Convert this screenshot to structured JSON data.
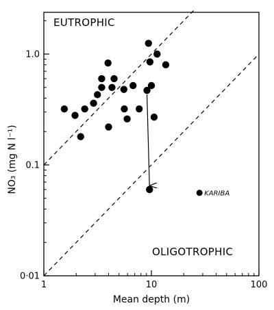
{
  "chart_data": {
    "type": "scatter",
    "xscale": "log",
    "yscale": "log",
    "xlim": [
      1,
      100
    ],
    "ylim": [
      0.01,
      2.5
    ],
    "xlabel": "Mean depth (m)",
    "ylabel": "NO₃ (mg N l⁻¹)",
    "x_ticks": [
      {
        "value": 1,
        "label": "1"
      },
      {
        "value": 10,
        "label": "10"
      },
      {
        "value": 100,
        "label": "100"
      }
    ],
    "y_ticks": [
      {
        "value": 0.01,
        "label": "0·01"
      },
      {
        "value": 0.1,
        "label": "0.1"
      },
      {
        "value": 1.0,
        "label": "1.0"
      }
    ],
    "region_labels": {
      "upper": "EUTROPHIC",
      "lower": "OLIGOTROPHIC"
    },
    "boundary_lines": [
      {
        "style": "dashed",
        "points": [
          [
            1,
            0.1
          ],
          [
            25,
            2.5
          ]
        ]
      },
      {
        "style": "dashed",
        "points": [
          [
            1,
            0.01
          ],
          [
            100,
            1.0
          ]
        ]
      }
    ],
    "points": [
      {
        "x": 1.55,
        "y": 0.32
      },
      {
        "x": 1.95,
        "y": 0.28
      },
      {
        "x": 2.2,
        "y": 0.18
      },
      {
        "x": 2.4,
        "y": 0.32
      },
      {
        "x": 2.9,
        "y": 0.36
      },
      {
        "x": 3.15,
        "y": 0.43
      },
      {
        "x": 3.45,
        "y": 0.5
      },
      {
        "x": 3.45,
        "y": 0.6
      },
      {
        "x": 3.95,
        "y": 0.83
      },
      {
        "x": 4.0,
        "y": 0.22
      },
      {
        "x": 4.3,
        "y": 0.5
      },
      {
        "x": 4.5,
        "y": 0.6
      },
      {
        "x": 5.55,
        "y": 0.48
      },
      {
        "x": 5.6,
        "y": 0.32
      },
      {
        "x": 5.95,
        "y": 0.26
      },
      {
        "x": 6.75,
        "y": 0.52
      },
      {
        "x": 7.7,
        "y": 0.32
      },
      {
        "x": 9.1,
        "y": 0.47
      },
      {
        "x": 9.4,
        "y": 1.25
      },
      {
        "x": 9.7,
        "y": 0.85
      },
      {
        "x": 10.0,
        "y": 0.52
      },
      {
        "x": 10.6,
        "y": 0.27
      },
      {
        "x": 11.3,
        "y": 1.0
      },
      {
        "x": 13.6,
        "y": 0.8
      },
      {
        "x": 9.6,
        "y": 0.06
      },
      {
        "x": 28.0,
        "y": 0.056,
        "label": "KARIBA"
      }
    ],
    "arrow": {
      "from": [
        9.1,
        0.47
      ],
      "to": [
        9.6,
        0.065
      ]
    }
  }
}
